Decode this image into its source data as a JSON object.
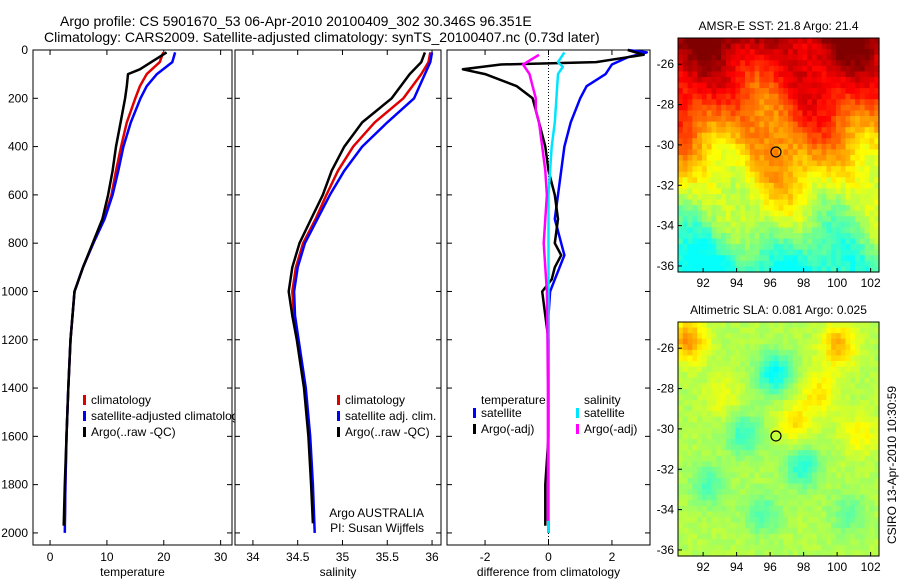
{
  "header": {
    "title_line1": "Argo profile: CS 5901670_53 06-Apr-2010 20100409_302 30.346S 96.351E",
    "title_line2": "Climatology: CARS2009. Satellite-adjusted climatology: synTS_20100407.nc (0.73d later)"
  },
  "side_label": "CSIRO 13-Apr-2010 10:30:59",
  "colors": {
    "red": "#e00000",
    "blue": "#0000ff",
    "black": "#000000",
    "cyan": "#00e5ff",
    "magenta": "#ff00ff"
  },
  "chart_data": [
    {
      "type": "line",
      "id": "temperature",
      "xlabel": "temperature",
      "xlim": [
        -3,
        32
      ],
      "ylim": [
        0,
        2050
      ],
      "y_reversed": true,
      "xticks": [
        0,
        10,
        20,
        30
      ],
      "yticks": [
        0,
        200,
        400,
        600,
        800,
        1000,
        1200,
        1400,
        1600,
        1800,
        2000
      ],
      "legend": [
        "climatology",
        "satellite-adjusted climatology",
        "Argo(..raw -QC)"
      ],
      "series": [
        {
          "name": "climatology",
          "color": "red",
          "y": [
            10,
            50,
            100,
            150,
            200,
            300,
            400,
            500,
            600,
            700,
            800,
            900,
            1000,
            1200,
            1400,
            1600,
            1800,
            1950
          ],
          "x": [
            19.9,
            19.3,
            17.0,
            15.8,
            15.0,
            13.5,
            12.5,
            11.6,
            10.8,
            9.5,
            7.6,
            5.8,
            4.3,
            3.6,
            3.2,
            2.9,
            2.7,
            2.6
          ]
        },
        {
          "name": "satellite-adjusted climatology",
          "color": "blue",
          "y": [
            10,
            50,
            100,
            150,
            200,
            300,
            400,
            500,
            600,
            700,
            800,
            900,
            1000,
            1200,
            1400,
            1600,
            1800,
            2000
          ],
          "x": [
            22.0,
            21.5,
            18.8,
            17.0,
            15.9,
            14.2,
            12.9,
            12.0,
            11.0,
            9.6,
            7.6,
            5.8,
            4.3,
            3.6,
            3.2,
            2.9,
            2.7,
            2.6
          ]
        },
        {
          "name": "Argo(..raw -QC)",
          "color": "black",
          "y": [
            10,
            50,
            80,
            100,
            150,
            200,
            300,
            400,
            500,
            600,
            700,
            800,
            900,
            1000,
            1200,
            1400,
            1600,
            1800,
            1970
          ],
          "x": [
            20.5,
            17.8,
            15.8,
            13.7,
            13.5,
            13.2,
            12.4,
            11.6,
            11.0,
            10.2,
            9.2,
            7.5,
            5.8,
            4.3,
            3.6,
            3.2,
            2.9,
            2.6,
            2.4
          ]
        }
      ]
    },
    {
      "type": "line",
      "id": "salinity",
      "xlabel": "salinity",
      "xlim": [
        33.8,
        36.1
      ],
      "ylim": [
        0,
        2050
      ],
      "y_reversed": true,
      "xticks": [
        34,
        34.5,
        35,
        35.5,
        36
      ],
      "xticklabels": [
        "34",
        "34.5",
        "35",
        "35.5",
        "36"
      ],
      "legend": [
        "climatology",
        "satellite adj. clim.",
        "Argo(..raw -QC)"
      ],
      "annotation": [
        "Argo AUSTRALIA",
        "PI: Susan Wijffels"
      ],
      "series": [
        {
          "name": "climatology",
          "color": "red",
          "y": [
            10,
            50,
            100,
            200,
            300,
            400,
            500,
            600,
            700,
            800,
            900,
            1000,
            1100,
            1200,
            1400,
            1600,
            1800,
            1950
          ],
          "x": [
            35.98,
            35.96,
            35.88,
            35.68,
            35.36,
            35.12,
            34.95,
            34.82,
            34.7,
            34.56,
            34.48,
            34.44,
            34.46,
            34.5,
            34.58,
            34.63,
            34.66,
            34.68
          ]
        },
        {
          "name": "satellite adj. clim.",
          "color": "blue",
          "y": [
            10,
            50,
            100,
            200,
            300,
            400,
            500,
            600,
            700,
            800,
            900,
            1000,
            1100,
            1200,
            1400,
            1600,
            1800,
            2000
          ],
          "x": [
            36.0,
            35.98,
            35.92,
            35.8,
            35.5,
            35.22,
            35.02,
            34.86,
            34.72,
            34.58,
            34.5,
            34.46,
            34.47,
            34.51,
            34.59,
            34.64,
            34.67,
            34.69
          ]
        },
        {
          "name": "Argo(..raw -QC)",
          "color": "black",
          "y": [
            10,
            50,
            100,
            200,
            300,
            400,
            500,
            600,
            700,
            800,
            900,
            1000,
            1100,
            1200,
            1400,
            1600,
            1800,
            1960
          ],
          "x": [
            35.92,
            35.88,
            35.75,
            35.55,
            35.22,
            35.02,
            34.88,
            34.78,
            34.65,
            34.52,
            34.44,
            34.4,
            34.44,
            34.49,
            34.57,
            34.62,
            34.65,
            34.67
          ]
        }
      ]
    },
    {
      "type": "line",
      "id": "difference",
      "xlabel": "difference from climatology",
      "xlim": [
        -3.2,
        3.2
      ],
      "ylim": [
        0,
        2050
      ],
      "y_reversed": true,
      "xticks": [
        -2,
        0,
        2
      ],
      "legend_titles": [
        "temperature",
        "salinity"
      ],
      "legend": [
        "satellite",
        "Argo(-adj)",
        "satellite",
        "Argo(-adj)"
      ],
      "series": [
        {
          "name": "temperature satellite",
          "color": "blue",
          "y": [
            0,
            10,
            30,
            60,
            100,
            150,
            200,
            300,
            400,
            500,
            600,
            700,
            800,
            850,
            900,
            950,
            1000,
            1100,
            1200,
            1400,
            1600,
            1800,
            2000
          ],
          "x": [
            2.5,
            3.1,
            2.5,
            2.0,
            1.8,
            1.2,
            1.0,
            0.7,
            0.5,
            0.4,
            0.3,
            0.2,
            0.4,
            0.5,
            0.35,
            0.2,
            0.05,
            0.0,
            0.0,
            0.0,
            0.0,
            0.0,
            0.0
          ]
        },
        {
          "name": "temperature Argo(-adj)",
          "color": "black",
          "y": [
            0,
            20,
            30,
            50,
            60,
            80,
            100,
            150,
            200,
            300,
            400,
            500,
            600,
            700,
            800,
            850,
            900,
            950,
            1000,
            1100,
            1200,
            1400,
            1600,
            1800,
            1970
          ],
          "x": [
            2.5,
            3.0,
            2.5,
            1.5,
            -1.5,
            -2.7,
            -2.0,
            -1.0,
            -0.5,
            -0.3,
            -0.1,
            0.0,
            0.2,
            0.3,
            0.2,
            0.4,
            0.2,
            0.1,
            -0.2,
            -0.1,
            0.0,
            0.0,
            0.0,
            -0.1,
            -0.1
          ]
        },
        {
          "name": "salinity satellite",
          "color": "cyan",
          "y": [
            10,
            50,
            70,
            100,
            200,
            300,
            400,
            500,
            600,
            700,
            800,
            1000,
            1200,
            1400,
            1600,
            1800,
            2000
          ],
          "x": [
            0.5,
            0.3,
            0.45,
            0.3,
            0.25,
            0.2,
            0.1,
            0.05,
            0.0,
            0.0,
            0.0,
            0.0,
            0.0,
            0.0,
            0.0,
            0.0,
            0.0
          ]
        },
        {
          "name": "salinity Argo(-adj)",
          "color": "magenta",
          "y": [
            20,
            60,
            100,
            150,
            200,
            250,
            300,
            400,
            500,
            600,
            700,
            800,
            900,
            1000,
            1200,
            1400,
            1600,
            1800,
            1950
          ],
          "x": [
            -0.3,
            -0.8,
            -0.6,
            -0.5,
            -0.4,
            -0.4,
            -0.3,
            -0.2,
            -0.1,
            -0.05,
            -0.1,
            -0.15,
            -0.1,
            -0.05,
            -0.03,
            -0.02,
            -0.02,
            -0.02,
            -0.02
          ]
        }
      ]
    },
    {
      "type": "heatmap",
      "id": "amsre-sst",
      "title": "AMSR-E SST: 21.8 Argo: 21.4",
      "xlim": [
        90.5,
        102.5
      ],
      "ylim": [
        -36.3,
        -24.7
      ],
      "xticks": [
        92,
        94,
        96,
        98,
        100,
        102
      ],
      "yticks": [
        -26,
        -28,
        -30,
        -32,
        -34,
        -36
      ],
      "marker": {
        "lon": 96.35,
        "lat": -30.35
      },
      "colormap": "jet",
      "range": [
        14,
        24
      ]
    },
    {
      "type": "heatmap",
      "id": "altimetric-sla",
      "title": "Altimetric SLA: 0.081 Argo: 0.025",
      "xlim": [
        90.5,
        102.5
      ],
      "ylim": [
        -36.3,
        -24.7
      ],
      "xticks": [
        92,
        94,
        96,
        98,
        100,
        102
      ],
      "yticks": [
        -26,
        -28,
        -30,
        -32,
        -34,
        -36
      ],
      "marker": {
        "lon": 96.35,
        "lat": -30.35
      },
      "colormap": "jet",
      "range": [
        -0.4,
        0.4
      ]
    }
  ]
}
